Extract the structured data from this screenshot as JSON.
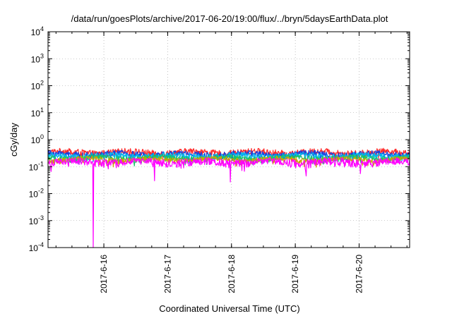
{
  "chart_data": {
    "type": "line",
    "title": "/data/run/goesPlots/archive/2017-06-20/19:00/flux/../bryn/5daysEarthData.plot",
    "xlabel": "Coordinated Universal Time (UTC)",
    "ylabel": "cGy/day",
    "y_scale": "log",
    "ylim": [
      0.0001,
      10000
    ],
    "y_ticks": [
      {
        "value": 0.0001,
        "base": "10",
        "exp": "-4"
      },
      {
        "value": 0.001,
        "base": "10",
        "exp": "-3"
      },
      {
        "value": 0.01,
        "base": "10",
        "exp": "-2"
      },
      {
        "value": 0.1,
        "base": "10",
        "exp": "-1"
      },
      {
        "value": 1,
        "base": "10",
        "exp": "0"
      },
      {
        "value": 10,
        "base": "10",
        "exp": "1"
      },
      {
        "value": 100,
        "base": "10",
        "exp": "2"
      },
      {
        "value": 1000,
        "base": "10",
        "exp": "3"
      },
      {
        "value": 10000,
        "base": "10",
        "exp": "4"
      }
    ],
    "xlim": [
      "2017-06-15T03:00",
      "2017-06-20T19:00"
    ],
    "x_ticks": [
      {
        "value": "2017-06-16T00:00",
        "label": "2017-6-16"
      },
      {
        "value": "2017-06-17T00:00",
        "label": "2017-6-17"
      },
      {
        "value": "2017-06-18T00:00",
        "label": "2017-6-18"
      },
      {
        "value": "2017-06-19T00:00",
        "label": "2017-6-19"
      },
      {
        "value": "2017-06-20T00:00",
        "label": "2017-6-20"
      }
    ],
    "grid": true,
    "series": [
      {
        "color": "#ff2a2a",
        "base": 0.34,
        "amp": 0.1
      },
      {
        "color": "#1a3fe0",
        "base": 0.29,
        "amp": 0.08
      },
      {
        "color": "#00b7ec",
        "base": 0.25,
        "amp": 0.07
      },
      {
        "color": "#19c46a",
        "base": 0.21,
        "amp": 0.05
      },
      {
        "color": "#c9a400",
        "base": 0.185,
        "amp": 0.04
      },
      {
        "color": "#ff00ff",
        "base": 0.15,
        "amp": 0.05,
        "dips": [
          {
            "x": "2017-06-15T20:00",
            "y": 0.0001
          },
          {
            "x": "2017-06-16T19:00",
            "y": 0.03
          },
          {
            "x": "2017-06-17T23:30",
            "y": 0.027
          },
          {
            "x": "2017-06-19T04:00",
            "y": 0.045
          },
          {
            "x": "2017-06-20T00:30",
            "y": 0.055
          }
        ]
      }
    ]
  }
}
